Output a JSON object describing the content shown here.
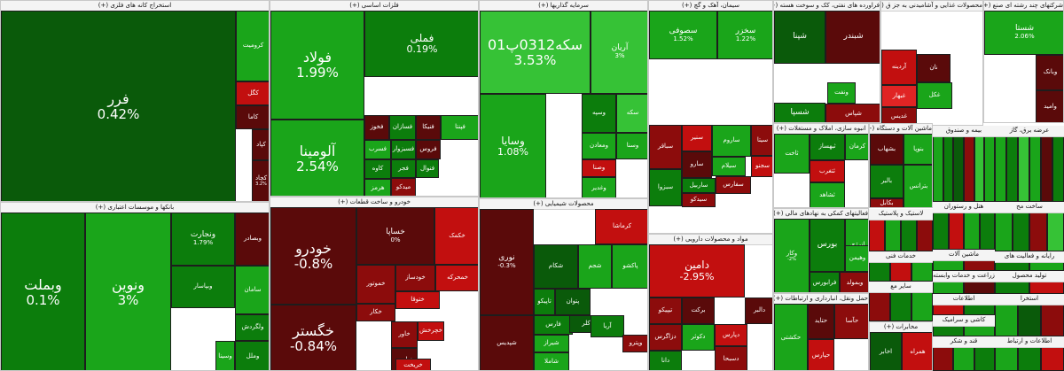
{
  "sectors": [
    {
      "title": "استخراج کانه های فلزی (+)",
      "tiles": [
        {
          "name": "فرر",
          "value": "0.42%"
        },
        {
          "name": "کرومیت",
          "value": ""
        },
        {
          "name": "کگل",
          "value": ""
        },
        {
          "name": "کاما",
          "value": ""
        },
        {
          "name": "کپاد",
          "value": ""
        },
        {
          "name": "کچاد",
          "value": "3.2%"
        }
      ]
    },
    {
      "title": "فلزات اساسی (+)",
      "tiles": [
        {
          "name": "فولاد",
          "value": "1.99%"
        },
        {
          "name": "فملی",
          "value": "0.19%"
        },
        {
          "name": "آلومینا",
          "value": "2.54%"
        },
        {
          "name": "فخوز",
          "value": ""
        },
        {
          "name": "فسازان",
          "value": ""
        },
        {
          "name": "فنیکا",
          "value": ""
        },
        {
          "name": "فسرب",
          "value": ""
        },
        {
          "name": "فسبزوار",
          "value": ""
        },
        {
          "name": "کاوه",
          "value": ""
        },
        {
          "name": "هرمز",
          "value": ""
        },
        {
          "name": "فجر",
          "value": ""
        },
        {
          "name": "فنوال",
          "value": ""
        },
        {
          "name": "میدکو",
          "value": ""
        },
        {
          "name": "فروس",
          "value": ""
        },
        {
          "name": "فپنتا",
          "value": ""
        }
      ]
    },
    {
      "title": "سرمایه گذاریها (+)",
      "tiles": [
        {
          "name": "سکه0312پ01",
          "value": "3.53%"
        },
        {
          "name": "آریان",
          "value": "3%"
        },
        {
          "name": "وسایا",
          "value": "1.08%"
        },
        {
          "name": "وسپه",
          "value": ""
        },
        {
          "name": "ومعادن",
          "value": ""
        },
        {
          "name": "وصنا",
          "value": ""
        },
        {
          "name": "سکه",
          "value": ""
        },
        {
          "name": "وسنا",
          "value": ""
        },
        {
          "name": "وغدیر",
          "value": ""
        }
      ]
    },
    {
      "title": "سیمان، آهک و گچ (+)",
      "tiles": [
        {
          "name": "سصوفی",
          "value": "1.52%"
        },
        {
          "name": "سخزر",
          "value": "1.22%"
        },
        {
          "name": "سباقر",
          "value": ""
        },
        {
          "name": "سنیر",
          "value": ""
        },
        {
          "name": "ساروم",
          "value": ""
        },
        {
          "name": "سیتا",
          "value": ""
        },
        {
          "name": "سیلام",
          "value": ""
        },
        {
          "name": "سجنو",
          "value": ""
        },
        {
          "name": "سارو",
          "value": ""
        },
        {
          "name": "ساربیل",
          "value": ""
        },
        {
          "name": "سبزوا",
          "value": ""
        },
        {
          "name": "سیدکو",
          "value": ""
        },
        {
          "name": "سفارس",
          "value": ""
        }
      ]
    },
    {
      "title": "فراورده های نفتی، کک و سوخت هسته (+)",
      "tiles": [
        {
          "name": "شپنا",
          "value": ""
        },
        {
          "name": "شبندر",
          "value": ""
        },
        {
          "name": "شسپا",
          "value": ""
        },
        {
          "name": "ونفت",
          "value": ""
        },
        {
          "name": "شپاس",
          "value": ""
        }
      ]
    },
    {
      "title": "محصولات غذایی و آشامیدنی به جز ق (+)",
      "tiles": [
        {
          "name": "نان",
          "value": ""
        },
        {
          "name": "آردینه",
          "value": ""
        },
        {
          "name": "غبهار",
          "value": ""
        },
        {
          "name": "غکل",
          "value": ""
        },
        {
          "name": "غدیس",
          "value": ""
        }
      ]
    },
    {
      "title": "شرکتهای چند رشته ای صنع (+)",
      "tiles": [
        {
          "name": "شستا",
          "value": "2.06%"
        },
        {
          "name": "وبانک",
          "value": ""
        },
        {
          "name": "وامید",
          "value": ""
        }
      ]
    },
    {
      "title": "بانکها و موسسات اعتباری (+)",
      "tiles": [
        {
          "name": "وبملت",
          "value": "0.1%"
        },
        {
          "name": "ونوین",
          "value": "3%"
        },
        {
          "name": "ونجارت",
          "value": "1.79%"
        },
        {
          "name": "وبصادر",
          "value": ""
        },
        {
          "name": "سامان",
          "value": ""
        },
        {
          "name": "وبپاسار",
          "value": ""
        },
        {
          "name": "ولگردش",
          "value": ""
        },
        {
          "name": "وسینا",
          "value": ""
        },
        {
          "name": "وملل",
          "value": ""
        }
      ]
    },
    {
      "title": "خودرو و ساخت قطعات (+)",
      "tiles": [
        {
          "name": "خودرو",
          "value": "-0.8%"
        },
        {
          "name": "خساپا",
          "value": "0%"
        },
        {
          "name": "خگستر",
          "value": "-0.84%"
        },
        {
          "name": "خکمک",
          "value": ""
        },
        {
          "name": "خموتور",
          "value": ""
        },
        {
          "name": "خودساز",
          "value": ""
        },
        {
          "name": "خمحرکه",
          "value": ""
        },
        {
          "name": "ختوقا",
          "value": ""
        },
        {
          "name": "خکار",
          "value": ""
        },
        {
          "name": "خاور",
          "value": ""
        },
        {
          "name": "خچرخش",
          "value": ""
        },
        {
          "name": "خپارس",
          "value": ""
        },
        {
          "name": "خریخت",
          "value": ""
        }
      ]
    },
    {
      "title": "محصولات شیمیایی (+)",
      "tiles": [
        {
          "name": "نوری",
          "value": "-0.3%"
        },
        {
          "name": "کرماشا",
          "value": ""
        },
        {
          "name": "شکام",
          "value": ""
        },
        {
          "name": "شجم",
          "value": ""
        },
        {
          "name": "پاکشو",
          "value": ""
        },
        {
          "name": "پتوان",
          "value": ""
        },
        {
          "name": "تاپیکو",
          "value": ""
        },
        {
          "name": "شپدیس",
          "value": ""
        },
        {
          "name": "فارس",
          "value": ""
        },
        {
          "name": "شیراز",
          "value": ""
        },
        {
          "name": "کلر",
          "value": ""
        },
        {
          "name": "آریا",
          "value": ""
        },
        {
          "name": "شاملا",
          "value": ""
        },
        {
          "name": "وپترو",
          "value": ""
        }
      ]
    },
    {
      "title": "مواد و محصولات دارویی (+)",
      "tiles": [
        {
          "name": "دامین",
          "value": "-2.95%"
        },
        {
          "name": "برکت",
          "value": ""
        },
        {
          "name": "تیپیکو",
          "value": ""
        },
        {
          "name": "دالبر",
          "value": ""
        },
        {
          "name": "دکوثر",
          "value": ""
        },
        {
          "name": "دزاگرس",
          "value": ""
        },
        {
          "name": "دپارس",
          "value": ""
        },
        {
          "name": "دسبحا",
          "value": ""
        },
        {
          "name": "دانا",
          "value": ""
        }
      ]
    },
    {
      "title": "انبوه سازی، املاک و مستغلات (+)",
      "tiles": [
        {
          "name": "کرمان",
          "value": ""
        },
        {
          "name": "ثبهساز",
          "value": ""
        },
        {
          "name": "ثتغرب",
          "value": ""
        },
        {
          "name": "ثشاهد",
          "value": ""
        },
        {
          "name": "ثاخت",
          "value": ""
        }
      ]
    },
    {
      "title": "ماشین آلات و دستگاه (+)",
      "tiles": [
        {
          "name": "بنوپا",
          "value": ""
        },
        {
          "name": "بالبر",
          "value": ""
        },
        {
          "name": "بکابل",
          "value": ""
        },
        {
          "name": "بترانس",
          "value": ""
        },
        {
          "name": "بشهاب",
          "value": ""
        }
      ]
    },
    {
      "title": "فعالیتهای کمکی به نهادهای مالی (+)",
      "tiles": [
        {
          "name": "وکار",
          "value": "-2%"
        },
        {
          "name": "بورس",
          "value": ""
        },
        {
          "name": "انرژی",
          "value": ""
        },
        {
          "name": "فرابورس",
          "value": ""
        },
        {
          "name": "وبمولد",
          "value": ""
        },
        {
          "name": "وهیمن",
          "value": ""
        }
      ]
    },
    {
      "title": "حمل ونقل، انبارداری و ارتباطات (+)",
      "tiles": [
        {
          "name": "حکشتی",
          "value": ""
        },
        {
          "name": "حتاید",
          "value": ""
        },
        {
          "name": "حپارس",
          "value": ""
        },
        {
          "name": "حآسا",
          "value": ""
        }
      ]
    },
    {
      "title": "مخابرات (+)",
      "tiles": [
        {
          "name": "اخابر",
          "value": ""
        },
        {
          "name": "همراه",
          "value": ""
        }
      ]
    }
  ],
  "small_headers": [
    "بیمه و صندوق",
    "عرضه برق، گاز",
    "هتل و رستوران",
    "ساخت مح",
    "لاستیک و پلاستیک",
    "ماشین آلات",
    "خدمات فنی",
    "رایانه و فعالیت های",
    "زراعت و خدمات وابسته",
    "سایر مع",
    "اطلاعات",
    "تولید محصول",
    "استخرا",
    "قند و شکر",
    "اطلاعات و ارتباط",
    "کاشی و سرامیک"
  ]
}
